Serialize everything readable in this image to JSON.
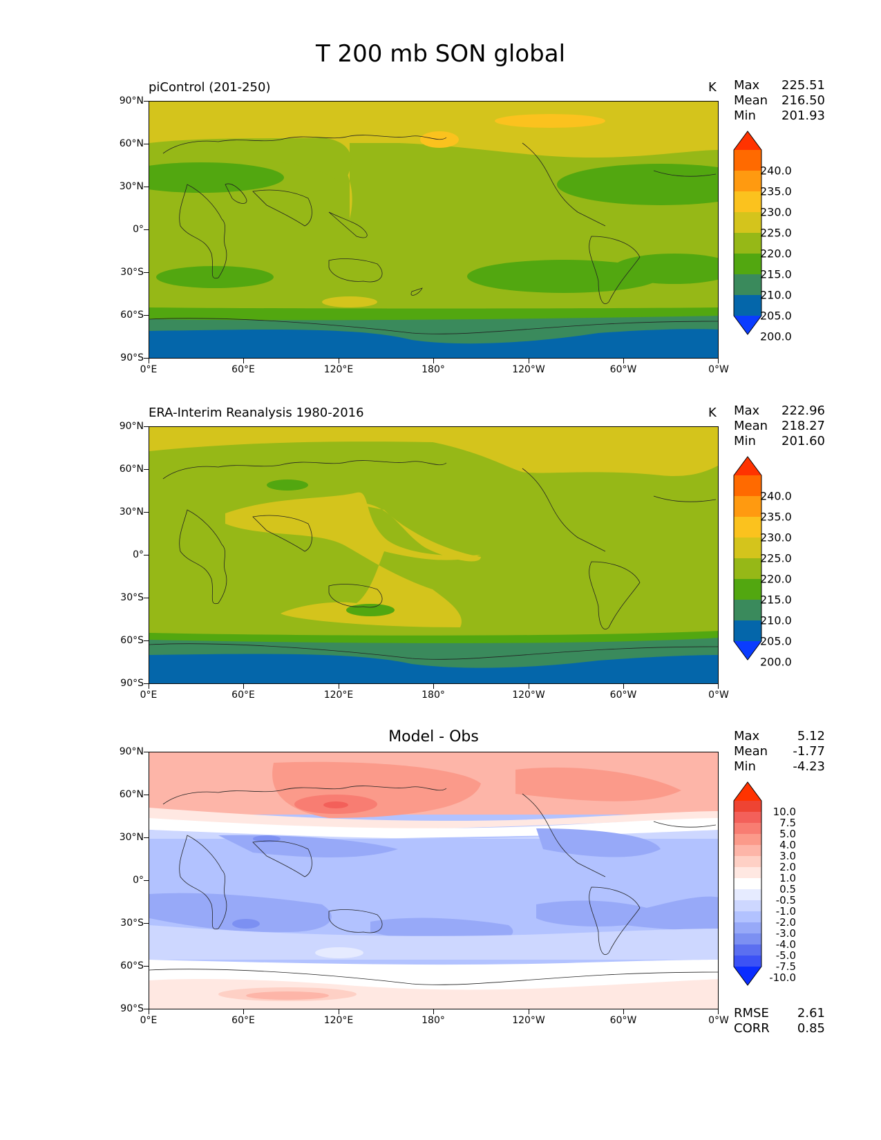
{
  "title": "T 200 mb SON global",
  "axes": {
    "yticks": [
      "90°N",
      "60°N",
      "30°N",
      "0°",
      "30°S",
      "60°S",
      "90°S"
    ],
    "xticks": [
      "0°E",
      "60°E",
      "120°E",
      "180°",
      "120°W",
      "60°W",
      "0°W"
    ]
  },
  "panels": [
    {
      "subtitle": "piControl (201-250)",
      "units": "K",
      "stats": [
        {
          "label": "Max",
          "value": "225.51"
        },
        {
          "label": "Mean",
          "value": "216.50"
        },
        {
          "label": "Min",
          "value": "201.93"
        }
      ],
      "colorbar": {
        "labels": [
          "240.0",
          "235.0",
          "230.0",
          "225.0",
          "220.0",
          "215.0",
          "210.0",
          "205.0",
          "200.0"
        ],
        "colors": [
          "#ff3300",
          "#ff6a00",
          "#ff9a10",
          "#fbc21e",
          "#d4c41c",
          "#96b817",
          "#52a710",
          "#3a8a5c",
          "#0466aa",
          "#0a3cff"
        ]
      }
    },
    {
      "subtitle": "ERA-Interim Reanalysis 1980-2016",
      "units": "K",
      "stats": [
        {
          "label": "Max",
          "value": "222.96"
        },
        {
          "label": "Mean",
          "value": "218.27"
        },
        {
          "label": "Min",
          "value": "201.60"
        }
      ],
      "colorbar": {
        "labels": [
          "240.0",
          "235.0",
          "230.0",
          "225.0",
          "220.0",
          "215.0",
          "210.0",
          "205.0",
          "200.0"
        ],
        "colors": [
          "#ff3300",
          "#ff6a00",
          "#ff9a10",
          "#fbc21e",
          "#d4c41c",
          "#96b817",
          "#52a710",
          "#3a8a5c",
          "#0466aa",
          "#0a3cff"
        ]
      }
    },
    {
      "subtitle": "Model - Obs",
      "units": "",
      "stats": [
        {
          "label": "Max",
          "value": "5.12"
        },
        {
          "label": "Mean",
          "value": "-1.77"
        },
        {
          "label": "Min",
          "value": "-4.23"
        }
      ],
      "bottom_stats": [
        {
          "label": "RMSE",
          "value": "2.61"
        },
        {
          "label": "CORR",
          "value": "0.85"
        }
      ],
      "colorbar": {
        "labels": [
          "10.0",
          "7.5",
          "5.0",
          "4.0",
          "3.0",
          "2.0",
          "1.0",
          "0.5",
          "-0.5",
          "-1.0",
          "-2.0",
          "-3.0",
          "-4.0",
          "-5.0",
          "-7.5",
          "-10.0"
        ],
        "colors": [
          "#ff3300",
          "#ee4433",
          "#f3605a",
          "#f87d72",
          "#fb9a8a",
          "#fdb5a8",
          "#fed0c5",
          "#ffe8e2",
          "#ffffff",
          "#e6ebff",
          "#cdd7ff",
          "#b2c2ff",
          "#97a9f8",
          "#7c90f2",
          "#5b6ff0",
          "#3c52f5",
          "#0a2cff"
        ]
      }
    }
  ],
  "chart_data": [
    {
      "type": "heatmap",
      "title": "piControl (201-250)",
      "units": "K",
      "xlim": [
        0,
        360
      ],
      "ylim": [
        -90,
        90
      ],
      "levels": [
        200,
        205,
        210,
        215,
        220,
        225,
        230,
        235,
        240
      ],
      "stats": {
        "max": 225.51,
        "mean": 216.5,
        "min": 201.93
      }
    },
    {
      "type": "heatmap",
      "title": "ERA-Interim Reanalysis 1980-2016",
      "units": "K",
      "xlim": [
        0,
        360
      ],
      "ylim": [
        -90,
        90
      ],
      "levels": [
        200,
        205,
        210,
        215,
        220,
        225,
        230,
        235,
        240
      ],
      "stats": {
        "max": 222.96,
        "mean": 218.27,
        "min": 201.6
      }
    },
    {
      "type": "heatmap",
      "title": "Model - Obs",
      "xlim": [
        0,
        360
      ],
      "ylim": [
        -90,
        90
      ],
      "levels": [
        -10,
        -7.5,
        -5,
        -4,
        -3,
        -2,
        -1,
        -0.5,
        0.5,
        1,
        2,
        3,
        4,
        5,
        7.5,
        10
      ],
      "stats": {
        "max": 5.12,
        "mean": -1.77,
        "min": -4.23,
        "rmse": 2.61,
        "corr": 0.85
      }
    }
  ]
}
